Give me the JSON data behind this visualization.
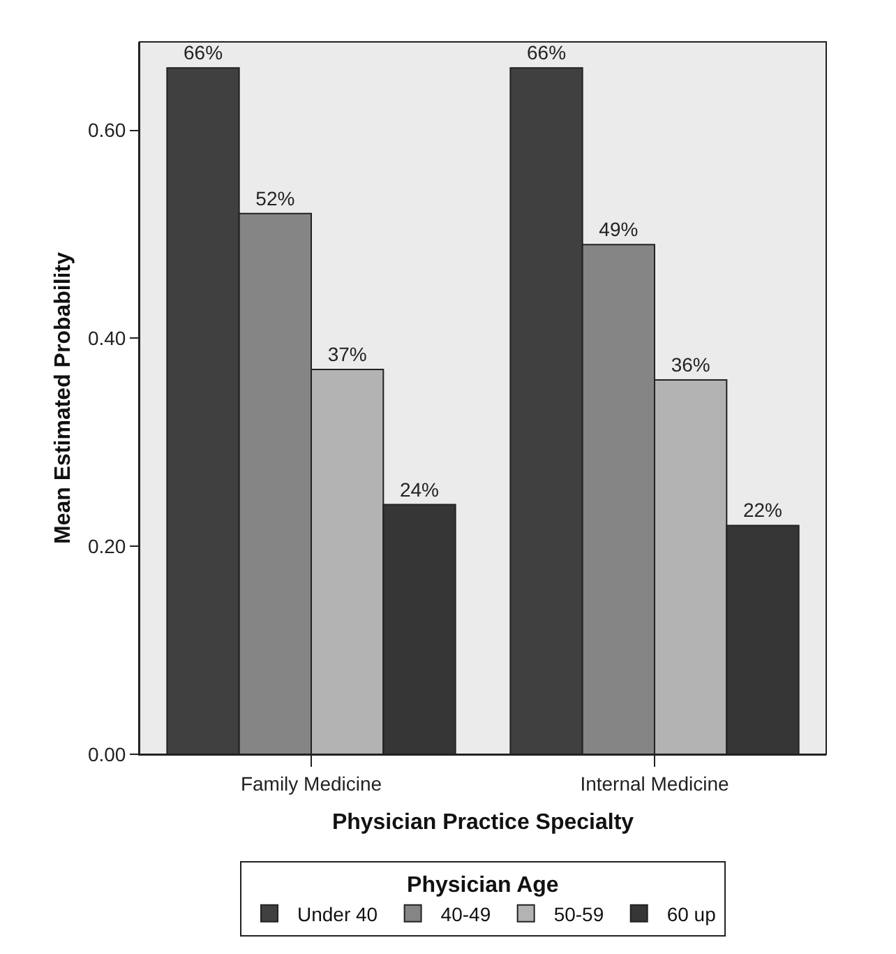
{
  "chart_data": {
    "type": "bar",
    "xlabel": "Physician Practice Specialty",
    "ylabel": "Mean Estimated Probability",
    "legend_title": "Physician Age",
    "categories": [
      "Family Medicine",
      "Internal Medicine"
    ],
    "series": [
      {
        "name": "Under 40",
        "color": "#404040",
        "values": [
          0.66,
          0.66
        ],
        "value_labels": [
          "66%",
          "66%"
        ]
      },
      {
        "name": "40-49",
        "color": "#858585",
        "values": [
          0.52,
          0.49
        ],
        "value_labels": [
          "52%",
          "49%"
        ]
      },
      {
        "name": "50-59",
        "color": "#b3b3b3",
        "values": [
          0.37,
          0.36
        ],
        "value_labels": [
          "37%",
          "36%"
        ]
      },
      {
        "name": "60 up",
        "color": "#363636",
        "values": [
          0.24,
          0.22
        ],
        "value_labels": [
          "24%",
          "22%"
        ]
      }
    ],
    "ylim": [
      0,
      0.685
    ],
    "yticks": [
      {
        "value": 0,
        "label": "0.00"
      },
      {
        "value": 0.2,
        "label": "0.20"
      },
      {
        "value": 0.4,
        "label": "0.40"
      },
      {
        "value": 0.6,
        "label": "0.60"
      }
    ],
    "grid": false,
    "legend": "bottom"
  }
}
